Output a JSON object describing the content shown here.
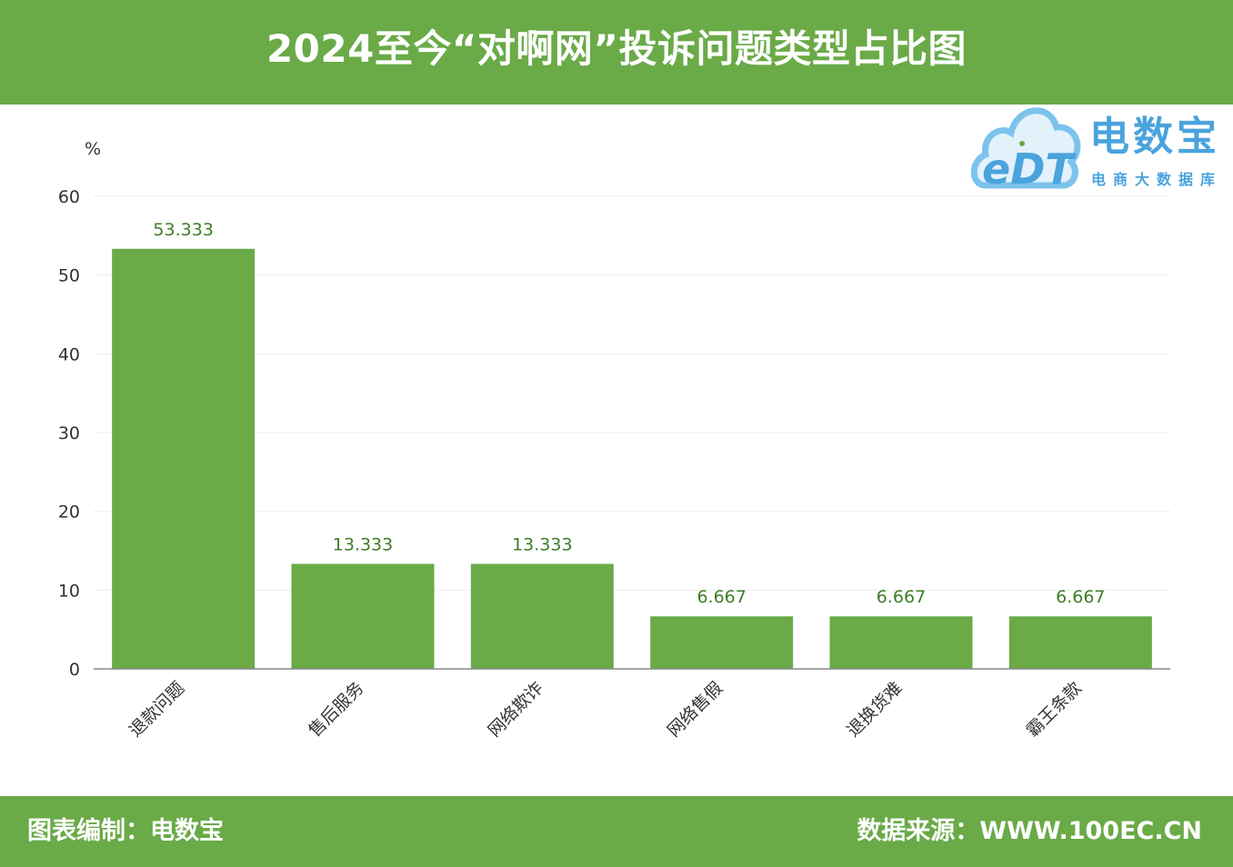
{
  "header": {
    "title": "2024至今“对啊网”投诉问题类型占比图"
  },
  "logo": {
    "name": "电数宝",
    "subtitle": "电商大数据库",
    "mark": "eDT"
  },
  "footer": {
    "left": "图表编制：电数宝",
    "right": "数据来源：WWW.100EC.CN"
  },
  "colors": {
    "brand_green": "#6aaa47",
    "bar": "#6aaa47",
    "value_label": "#3e7d28",
    "logo_blue": "#4aa3dd"
  },
  "chart_data": {
    "type": "bar",
    "title": "2024至今“对啊网”投诉问题类型占比图",
    "ylabel": "%",
    "xlabel": "",
    "categories": [
      "退款问题",
      "售后服务",
      "网络欺诈",
      "网络售假",
      "退换货难",
      "霸王条款"
    ],
    "values": [
      53.333,
      13.333,
      13.333,
      6.667,
      6.667,
      6.667
    ],
    "value_labels": [
      "53.333",
      "13.333",
      "13.333",
      "6.667",
      "6.667",
      "6.667"
    ],
    "ylim": [
      0,
      60
    ],
    "yticks": [
      "0",
      "10",
      "20",
      "30",
      "40",
      "50",
      "60"
    ],
    "grid": true,
    "legend": "none"
  }
}
